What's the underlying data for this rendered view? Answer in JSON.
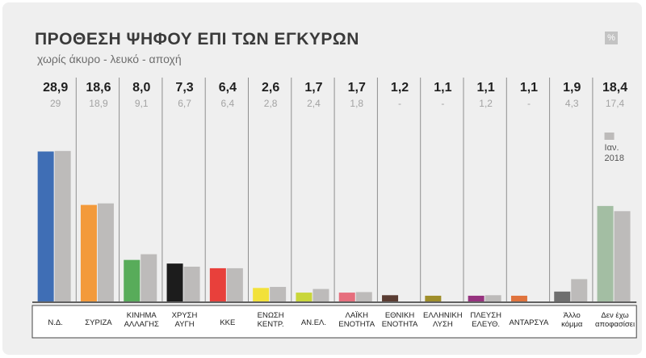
{
  "header": {
    "title": "ΠΡΟΘΕΣΗ ΨΗΦΟΥ ΕΠΙ ΤΩΝ ΕΓΚΥΡΩΝ",
    "subtitle": "χωρίς άκυρο - λευκό - αποχή",
    "unit_badge": "%"
  },
  "chart_data": {
    "type": "bar",
    "title": "ΠΡΟΘΕΣΗ ΨΗΦΟΥ ΕΠΙ ΤΩΝ ΕΓΚΥΡΩΝ",
    "subtitle": "χωρίς άκυρο - λευκό - αποχή",
    "xlabel": "",
    "ylabel": "",
    "grid": false,
    "legend_position": "top-right",
    "categories": [
      [
        "Ν.Δ."
      ],
      [
        "ΣΥΡΙΖΑ"
      ],
      [
        "ΚΙΝΗΜΑ",
        "ΑΛΛΑΓΗΣ"
      ],
      [
        "ΧΡΥΣΗ",
        "ΑΥΓΗ"
      ],
      [
        "ΚΚΕ"
      ],
      [
        "ΕΝΩΣΗ",
        "ΚΕΝΤΡ."
      ],
      [
        "ΑΝ.ΕΛ."
      ],
      [
        "ΛΑΪΚΗ",
        "ΕΝΟΤΗΤΑ"
      ],
      [
        "ΕΘΝΙΚΗ",
        "ΕΝΟΤΗΤΑ"
      ],
      [
        "ΕΛΛΗΝΙΚΗ",
        "ΛΥΣΗ"
      ],
      [
        "ΠΛΕΥΣΗ",
        "ΕΛΕΥΘ."
      ],
      [
        "ΑΝΤΑΡΣΥΑ"
      ],
      [
        "Άλλο",
        "κόμμα"
      ],
      [
        "Δεν έχω",
        "αποφασίσει"
      ]
    ],
    "series": [
      {
        "values": [
          28.9,
          18.6,
          8.0,
          7.3,
          6.4,
          2.6,
          1.7,
          1.7,
          1.2,
          1.1,
          1.1,
          1.1,
          1.9,
          18.4
        ],
        "labels": [
          "28,9",
          "18,6",
          "8,0",
          "7,3",
          "6,4",
          "2,6",
          "1,7",
          "1,7",
          "1,2",
          "1,1",
          "1,1",
          "1,1",
          "1,9",
          "18,4"
        ],
        "colors": [
          "#3f6eb5",
          "#f39a3b",
          "#58ac5a",
          "#1c1c1c",
          "#e8403b",
          "#f2e13a",
          "#c9d63a",
          "#e66e7d",
          "#5a3c32",
          "#9f8e2a",
          "#96337f",
          "#e0733d",
          "#6e6e6e",
          "#a3bea3"
        ]
      },
      {
        "name": "Ιαν. 2018",
        "values": [
          29,
          18.9,
          9.1,
          6.7,
          6.4,
          2.8,
          2.4,
          1.8,
          null,
          null,
          1.2,
          null,
          4.3,
          17.4
        ],
        "labels": [
          "29",
          "18,9",
          "9,1",
          "6,7",
          "6,4",
          "2,8",
          "2,4",
          "1,8",
          "-",
          "-",
          "1,2",
          "-",
          "4,3",
          "17,4"
        ],
        "color": "#bdbbba"
      }
    ],
    "legend": {
      "label_line1": "Ιαν.",
      "label_line2": "2018"
    },
    "ylim": [
      0,
      30
    ]
  }
}
